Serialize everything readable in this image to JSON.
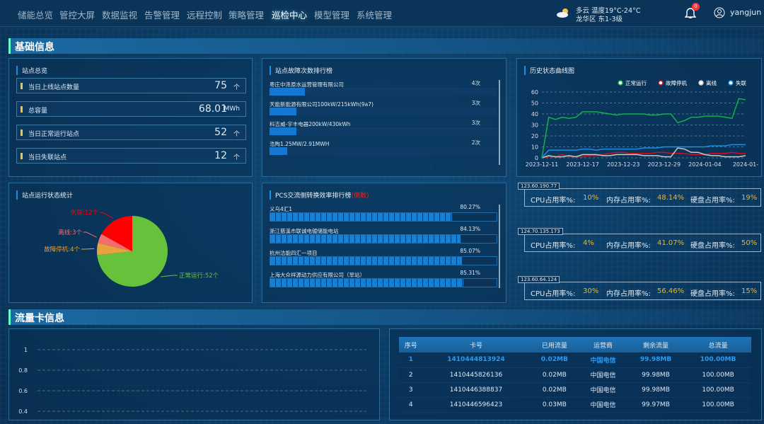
{
  "nav": {
    "items": [
      "储能总览",
      "管控大屏",
      "数据监视",
      "告警管理",
      "远程控制",
      "策略管理",
      "巡检中心",
      "模型管理",
      "系统管理"
    ],
    "active": "巡检中心",
    "weather": {
      "icon": "partly-cloudy-icon",
      "line1": "多云 温度19°C-24°C",
      "line2": "龙华区 东1-3级"
    },
    "notifications": "0",
    "user": "yangjun"
  },
  "sections": {
    "basic": "基础信息",
    "flow": "流量卡信息"
  },
  "overview": {
    "title": "站点总览",
    "stats": [
      {
        "label": "当日上线站点数量",
        "value": "75",
        "unit": "个"
      },
      {
        "label": "总容量",
        "value": "68.01",
        "unit": "MWh"
      },
      {
        "label": "当日正常运行站点",
        "value": "52",
        "unit": "个"
      },
      {
        "label": "当日失联站点",
        "value": "12",
        "unit": "个"
      }
    ]
  },
  "fault_rank": {
    "title": "站点故障次数排行榜",
    "items": [
      {
        "name": "枣庄中泽原水运营管理有限公司",
        "count": "4次",
        "value": 4
      },
      {
        "name": "天能新能源有限公司100kW/215kWh(9a7)",
        "count": "3次",
        "value": 3
      },
      {
        "name": "科吉威-宇丰电器200kW/430kWh",
        "count": "3次",
        "value": 3
      },
      {
        "name": "浩陶1.25MW/2.91MWH",
        "count": "2次",
        "value": 2
      }
    ]
  },
  "pcs_rank": {
    "title": "PCS交流侧转换效率排行榜",
    "title_suffix": "(倒数)",
    "items": [
      {
        "name": "义乌4汇1",
        "pct": "80.27%",
        "value": 80.27
      },
      {
        "name": "浙江慈溪市联诚电镀储能电站",
        "pct": "84.13%",
        "value": 84.13
      },
      {
        "name": "杭州洁能四汇一项目",
        "pct": "85.07%",
        "value": 85.07
      },
      {
        "name": "上海大众祥源动力供应有限公司（旱站）",
        "pct": "85.31%",
        "value": 85.31
      }
    ]
  },
  "pie": {
    "title": "站点运行状态统计",
    "chart_data": {
      "type": "pie",
      "slices": [
        {
          "label": "正常运行:52个",
          "value": 52,
          "color": "#66c23a"
        },
        {
          "label": "故障停机:4个",
          "value": 4,
          "color": "#e6a23c"
        },
        {
          "label": "离线:3个",
          "value": 3,
          "color": "#f56c6c"
        },
        {
          "label": "失联:12个",
          "value": 12,
          "color": "#ff0000"
        }
      ]
    }
  },
  "history": {
    "title": "历史状态曲线图",
    "chart_data": {
      "type": "line",
      "ylim": [
        0,
        60
      ],
      "yticks": [
        0,
        10,
        20,
        30,
        40,
        50,
        60
      ],
      "grid": true,
      "legend": "top-right",
      "xticks": [
        "2023-12-11",
        "2023-12-17",
        "2023-12-23",
        "2023-12-29",
        "2024-01-04",
        "2024-01-"
      ],
      "series": [
        {
          "name": "正常运行",
          "color": "#12b04a",
          "values": [
            0,
            37,
            35,
            37,
            36,
            37,
            42,
            42,
            42,
            41,
            40,
            39,
            40,
            40,
            40,
            40,
            39,
            39,
            40,
            40,
            32,
            34,
            37,
            37,
            38,
            38,
            38,
            37,
            36,
            54,
            53
          ]
        },
        {
          "name": "故障停机",
          "color": "#d0101a",
          "values": [
            0,
            1,
            1,
            3,
            1,
            1,
            1,
            2,
            2,
            3,
            4,
            5,
            5,
            4,
            4,
            4,
            4,
            5,
            5,
            4,
            4,
            4,
            3,
            3,
            3,
            4,
            4,
            4,
            5,
            4,
            4
          ]
        },
        {
          "name": "离线",
          "color": "#c8c8c8",
          "values": [
            0,
            2,
            1,
            1,
            2,
            1,
            3,
            3,
            3,
            2,
            2,
            3,
            3,
            3,
            3,
            2,
            2,
            2,
            1,
            1,
            9,
            8,
            5,
            5,
            3,
            2,
            2,
            1,
            1,
            1,
            2
          ]
        },
        {
          "name": "失联",
          "color": "#1a8fe6",
          "values": [
            0,
            7,
            7,
            7,
            7,
            7,
            8,
            8,
            7,
            8,
            8,
            8,
            8,
            8,
            8,
            9,
            9,
            9,
            10,
            10,
            10,
            10,
            10,
            10,
            10,
            11,
            11,
            11,
            12,
            12,
            12
          ]
        }
      ]
    }
  },
  "servers": [
    {
      "ip": "123.60.190.77",
      "cpu_label": "CPU占用率%:",
      "cpu": "10%",
      "mem_label": "内存占用率%:",
      "mem": "48.14%",
      "disk_label": "硬盘占用率%:",
      "disk": "19%"
    },
    {
      "ip": "124.70.135.173",
      "cpu_label": "CPU占用率%:",
      "cpu": "4%",
      "mem_label": "内存占用率%:",
      "mem": "41.07%",
      "disk_label": "硬盘占用率%:",
      "disk": "50%"
    },
    {
      "ip": "123.60.64.124",
      "cpu_label": "CPU占用率%:",
      "cpu": "30%",
      "mem_label": "内存占用率%:",
      "mem": "56.46%",
      "disk_label": "硬盘占用率%:",
      "disk": "15%"
    }
  ],
  "flow_chart": {
    "chart_data": {
      "type": "line",
      "yticks": [
        "1",
        "0.8",
        "0.6",
        "0.4"
      ],
      "grid": true,
      "series": []
    }
  },
  "flow_table": {
    "columns": [
      "序号",
      "卡号",
      "已用流量",
      "运营商",
      "剩余流量",
      "总流量"
    ],
    "rows": [
      [
        "1",
        "1410444813924",
        "0.02MB",
        "中国电信",
        "99.98MB",
        "100.00MB"
      ],
      [
        "2",
        "1410445826136",
        "0.02MB",
        "中国电信",
        "99.98MB",
        "100.00MB"
      ],
      [
        "3",
        "1410446388837",
        "0.02MB",
        "中国电信",
        "99.98MB",
        "100.00MB"
      ],
      [
        "4",
        "1410446596423",
        "0.03MB",
        "中国电信",
        "99.97MB",
        "100.00MB"
      ]
    ]
  }
}
